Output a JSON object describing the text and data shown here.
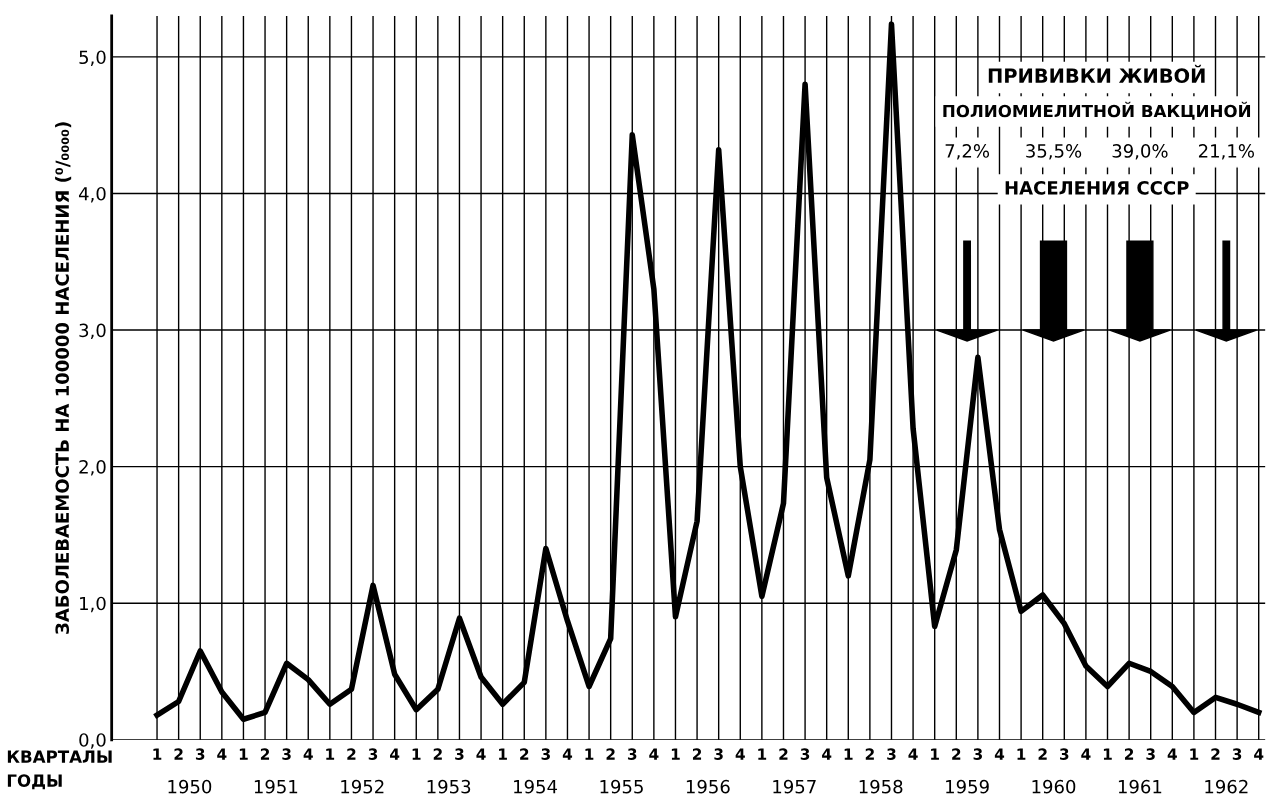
{
  "chart_data": {
    "type": "line",
    "ylabel": "ЗАБОЛЕВАЕМОСТЬ НА 100000 НАСЕЛЕНИЯ (⁰/₀₀₀₀)",
    "categories": [
      "1",
      "2",
      "3",
      "4",
      "1",
      "2",
      "3",
      "4",
      "1",
      "2",
      "3",
      "4",
      "1",
      "2",
      "3",
      "4",
      "1",
      "2",
      "3",
      "4",
      "1",
      "2",
      "3",
      "4",
      "1",
      "2",
      "3",
      "4",
      "1",
      "2",
      "3",
      "4",
      "1",
      "2",
      "3",
      "4",
      "1",
      "2",
      "3",
      "4",
      "1",
      "2",
      "3",
      "4",
      "1",
      "2",
      "3",
      "4",
      "1",
      "2",
      "3",
      "4"
    ],
    "series": [
      {
        "color": "#000000",
        "values": [
          0.18,
          0.28,
          0.65,
          0.35,
          0.15,
          0.2,
          0.56,
          0.44,
          0.26,
          0.37,
          1.13,
          0.48,
          0.22,
          0.37,
          0.89,
          0.46,
          0.26,
          0.42,
          1.4,
          0.87,
          0.39,
          0.74,
          4.43,
          3.3,
          0.9,
          1.6,
          4.32,
          2.0,
          1.05,
          1.73,
          4.8,
          1.92,
          1.2,
          2.05,
          5.24,
          2.28,
          0.83,
          1.39,
          2.8,
          1.54,
          0.94,
          1.06,
          0.85,
          0.54,
          0.39,
          0.56,
          0.5,
          0.39,
          0.2,
          0.31,
          0.26,
          0.2
        ]
      }
    ],
    "ylim": [
      0,
      5.3
    ],
    "yticks": [
      {
        "value": 0,
        "label": "0,0"
      },
      {
        "value": 1,
        "label": "1,0"
      },
      {
        "value": 2,
        "label": "2,0"
      },
      {
        "value": 3,
        "label": "3,0"
      },
      {
        "value": 4,
        "label": "4,0"
      },
      {
        "value": 5,
        "label": "5,0"
      }
    ],
    "grid": true,
    "marker": "none",
    "line_style": "solid",
    "annotations": [
      "КВАРТАЛЫ",
      "ГОДЫ",
      "1950",
      "1951",
      "1952",
      "1953",
      "1954",
      "1955",
      "1956",
      "1957",
      "1958",
      "1959",
      "1960",
      "1961",
      "1962",
      "ПРИВИВКИ ЖИВОЙ",
      "ПОЛИОМИЕЛИТНОЙ ВАКЦИНОЙ",
      "7,2%",
      "35,5%",
      "39,0%",
      "21,1%",
      "НАСЕЛЕНИЯ СССР"
    ]
  }
}
